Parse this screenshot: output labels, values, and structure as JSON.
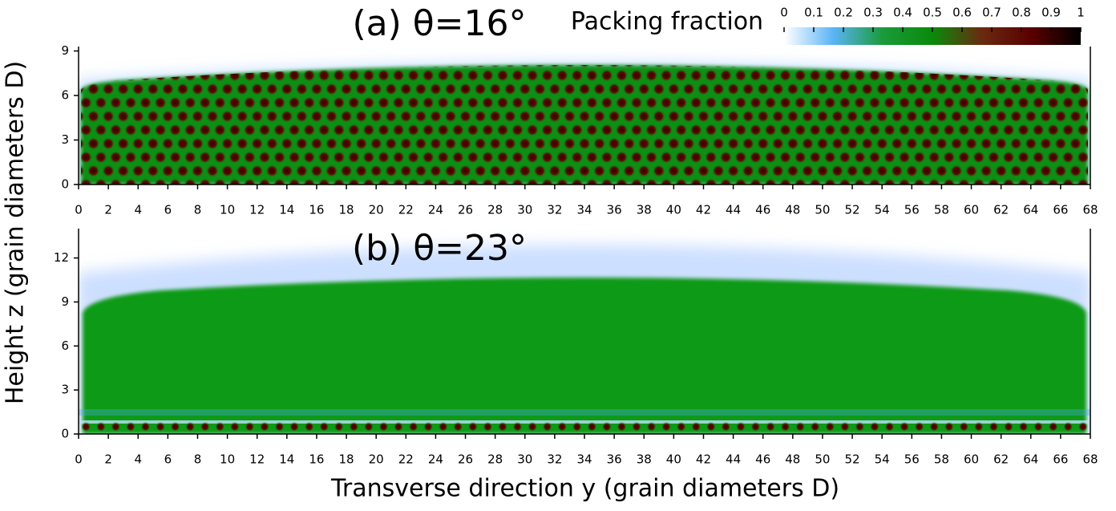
{
  "chart_data": [
    {
      "type": "heatmap",
      "title": "(a) θ=16°",
      "xlim": [
        0,
        68
      ],
      "xticks": [
        0,
        2,
        4,
        6,
        8,
        10,
        12,
        14,
        16,
        18,
        20,
        22,
        24,
        26,
        28,
        30,
        32,
        34,
        36,
        38,
        40,
        42,
        44,
        46,
        48,
        50,
        52,
        54,
        56,
        58,
        60,
        62,
        64,
        66,
        68
      ],
      "ylim": [
        0,
        9.3
      ],
      "yticks": [
        0,
        3,
        6,
        9
      ],
      "colorbar": {
        "label": "Packing fraction",
        "lim": [
          0,
          1
        ],
        "ticks": [
          0,
          0.1,
          0.2,
          0.3,
          0.4,
          0.5,
          0.6,
          0.7,
          0.8,
          0.9,
          1
        ],
        "colors": [
          "#ffffff",
          "#5ab4f5",
          "#1a9a3a",
          "#0a8a0a",
          "#6a2a10",
          "#5a0000",
          "#000000"
        ]
      }
    },
    {
      "type": "heatmap",
      "title": "(b) θ=23°",
      "xlim": [
        0,
        68
      ],
      "xticks": [
        0,
        2,
        4,
        6,
        8,
        10,
        12,
        14,
        16,
        18,
        20,
        22,
        24,
        26,
        28,
        30,
        32,
        34,
        36,
        38,
        40,
        42,
        44,
        46,
        48,
        50,
        52,
        54,
        56,
        58,
        60,
        62,
        64,
        66,
        68
      ],
      "ylim": [
        0,
        14
      ],
      "yticks": [
        0,
        3,
        6,
        9,
        12
      ]
    }
  ],
  "xlabel": "Transverse direction y (grain diameters D)",
  "ylabel": "Height z (grain diameters D)"
}
